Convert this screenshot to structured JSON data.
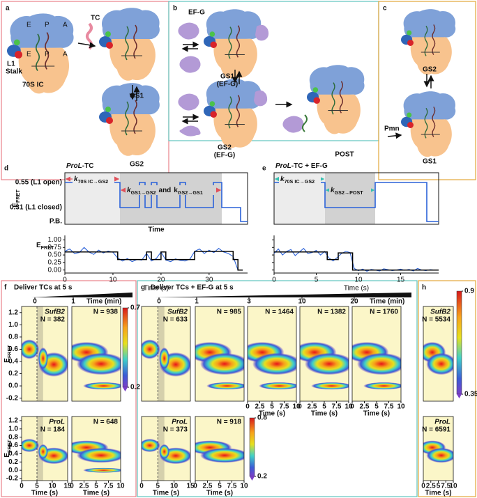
{
  "panel_a": {
    "letter": "a",
    "tc": "TC",
    "top_sites": [
      "E",
      "P",
      "A"
    ],
    "bottom_sites": [
      "E",
      "P",
      "A"
    ],
    "l1": "L1",
    "stalk": "Stalk",
    "ic": "70S IC",
    "gs1": "GS1",
    "gs2": "GS2"
  },
  "panel_b": {
    "letter": "b",
    "efg": "EF-G",
    "gs1": "GS1",
    "gs1_note": "(EF-G)",
    "gs2": "GS2",
    "gs2_note": "(EF-G)",
    "post": "POST"
  },
  "panel_c": {
    "letter": "c",
    "gs2": "GS2",
    "gs1": "GS1",
    "pmn": "Pmn"
  },
  "panel_d": {
    "letter": "d",
    "title": {
      "italic": "ProL",
      "rest": "-TC"
    },
    "ylabel": {
      "main": "E",
      "sub": "FRET"
    },
    "levels": [
      "0.55 (L1 open)",
      "0.31 (L1 closed)",
      "P.B."
    ],
    "xlabel": "Time",
    "rate1": {
      "k": "k",
      "sub": "70S IC→GS2"
    },
    "rate2": {
      "k1": "k",
      "s1": "GS1→GS2",
      "and": "and",
      "k2": "k",
      "s2": "GS2→GS1"
    }
  },
  "panel_e": {
    "letter": "e",
    "title": {
      "italic": "ProL",
      "rest": "-TC + EF-G"
    },
    "rate1": {
      "k": "k",
      "sub": "70S IC→GS2"
    },
    "rate2": {
      "k": "k",
      "sub": "GS2→POST"
    }
  },
  "chart_data": [
    {
      "type": "line",
      "ylabel": {
        "main": "E",
        "sub": "FRET"
      },
      "xlabel": "Time (s)",
      "xlim": [
        0,
        38
      ],
      "xticks": [
        0,
        10,
        20,
        30
      ],
      "ylim": [
        -0.1,
        1.15
      ],
      "yticks": [
        {
          "value": 0,
          "label": "0.00"
        },
        0.25,
        {
          "value": 0.5,
          "label": "0.50"
        },
        0.75,
        {
          "value": 1,
          "label": "1.00"
        }
      ],
      "series": [
        {
          "color": "#2b62d9",
          "x": [
            0,
            1,
            2,
            3,
            4,
            5,
            6,
            7,
            8,
            9,
            10,
            11,
            12,
            13,
            14,
            15,
            16,
            17,
            18,
            19,
            20,
            21,
            22,
            23,
            24,
            25,
            26,
            27,
            28,
            29,
            30,
            31,
            32,
            33,
            34,
            35,
            36,
            37
          ],
          "values": [
            0.62,
            0.7,
            0.55,
            0.58,
            0.75,
            0.6,
            0.52,
            0.66,
            0.57,
            0.63,
            0.59,
            0.4,
            0.3,
            0.38,
            0.28,
            0.35,
            0.33,
            0.55,
            0.3,
            0.38,
            0.6,
            0.33,
            0.28,
            0.37,
            0.32,
            0.3,
            0.36,
            0.62,
            0.7,
            0.55,
            0.66,
            0.58,
            0.72,
            0.6,
            0.55,
            0.45,
            0,
            0
          ]
        },
        {
          "color": "#000000",
          "x": [
            0,
            11,
            11,
            17,
            17,
            18,
            18,
            20,
            20,
            21,
            21,
            27,
            27,
            35,
            35,
            36,
            36,
            37
          ],
          "values": [
            0.6,
            0.6,
            0.35,
            0.35,
            0.6,
            0.6,
            0.35,
            0.35,
            0.6,
            0.6,
            0.35,
            0.35,
            0.62,
            0.62,
            0.35,
            0.35,
            0,
            0
          ]
        }
      ]
    },
    {
      "type": "line",
      "ylabel": {
        "main": "E",
        "sub": "FRET"
      },
      "xlabel": "Time (s)",
      "xlim": [
        0,
        19.5
      ],
      "xticks": [
        0,
        5,
        10,
        15
      ],
      "ylim": [
        -0.1,
        1.15
      ],
      "yticks": [
        {
          "value": 0,
          "label": "0.00"
        },
        0.25,
        {
          "value": 0.5,
          "label": "0.50"
        },
        0.75,
        {
          "value": 1,
          "label": "1.00"
        }
      ],
      "series": [
        {
          "color": "#2b62d9",
          "x": [
            0,
            0.5,
            1,
            1.5,
            2,
            2.5,
            3,
            3.5,
            4,
            4.5,
            5,
            5.5,
            6,
            6.5,
            7,
            7.5,
            8,
            8.5,
            9,
            9.5,
            10,
            10.5,
            11,
            11.5,
            12,
            12.5,
            13,
            13.5,
            14,
            14.5,
            15,
            15.5,
            16,
            16.5,
            17,
            17.5,
            18,
            18.5,
            19
          ],
          "values": [
            0.55,
            0.7,
            0.5,
            0.62,
            0.68,
            0.48,
            0.6,
            0.72,
            0.55,
            0.58,
            0.65,
            0.5,
            0.62,
            0.4,
            0.3,
            0.42,
            0.55,
            0.62,
            0.58,
            0.05,
            -0.02,
            0.03,
            -0.04,
            0.02,
            0,
            -0.03,
            0.04,
            0.01,
            -0.02,
            0,
            0.03,
            -0.01,
            0.02,
            -0.03,
            0.05,
            0,
            -0.02,
            0.01,
            0
          ]
        },
        {
          "color": "#000000",
          "x": [
            0,
            6.3,
            6.3,
            7.6,
            7.6,
            9.3,
            9.3,
            19.5
          ],
          "values": [
            0.6,
            0.6,
            0.35,
            0.35,
            0.57,
            0.57,
            0,
            0
          ]
        }
      ]
    }
  ],
  "heatmap_axes": {
    "ylabel": {
      "main": "E",
      "sub": "FRET"
    },
    "ylim": [
      -0.25,
      1.3
    ],
    "yticks": [
      {
        "value": 1.2,
        "label": "1.2"
      },
      {
        "value": 1,
        "label": "1.0"
      },
      0.8,
      0.6,
      0.4,
      0.2,
      {
        "value": 0,
        "label": "0.0"
      },
      -0.2
    ],
    "xlabel": "Time (s)",
    "x_long": {
      "xlim": [
        0,
        15
      ],
      "xticks": [
        0,
        5,
        10,
        15
      ]
    },
    "x_short": {
      "xlim": [
        0,
        10
      ],
      "xticks": [
        0,
        2.5,
        5,
        7.5,
        10
      ]
    }
  },
  "panel_f": {
    "letter": "f",
    "header": "Deliver TCs at 5 s",
    "times": [
      "0",
      "1"
    ],
    "time_unit": "Time (min)",
    "rows": [
      {
        "name": "SufB2",
        "n": [
          "N = 382",
          "N = 938"
        ]
      },
      {
        "name": "ProL",
        "n": [
          "N = 184",
          "N = 648"
        ]
      }
    ],
    "colorbar": {
      "lim": [
        0.2,
        0.7
      ],
      "ticks": [
        0.2,
        0.7
      ]
    }
  },
  "panel_g": {
    "letter": "g",
    "header": "Deliver TCs + EF-G at 5 s",
    "times": [
      "0",
      "1",
      "3",
      "10",
      "20"
    ],
    "time_unit": "Time (min)",
    "rows": [
      {
        "name": "SufB2",
        "n": [
          "N = 633",
          "N = 985",
          "N = 1464",
          "N = 1382",
          "N = 1760"
        ]
      },
      {
        "name": "ProL",
        "n": [
          "N = 373",
          "N = 918"
        ]
      }
    ],
    "colorbar": {
      "lim": [
        0.2,
        0.8
      ],
      "ticks": [
        0.2,
        0.8
      ]
    }
  },
  "panel_h": {
    "letter": "h",
    "rows": [
      {
        "name": "SufB2",
        "n": [
          "N = 5534"
        ]
      },
      {
        "name": "ProL",
        "n": [
          "N = 6591"
        ]
      }
    ],
    "colorbar": {
      "lim": [
        0.35,
        0.9
      ],
      "ticks": [
        0.35,
        0.9
      ]
    }
  }
}
